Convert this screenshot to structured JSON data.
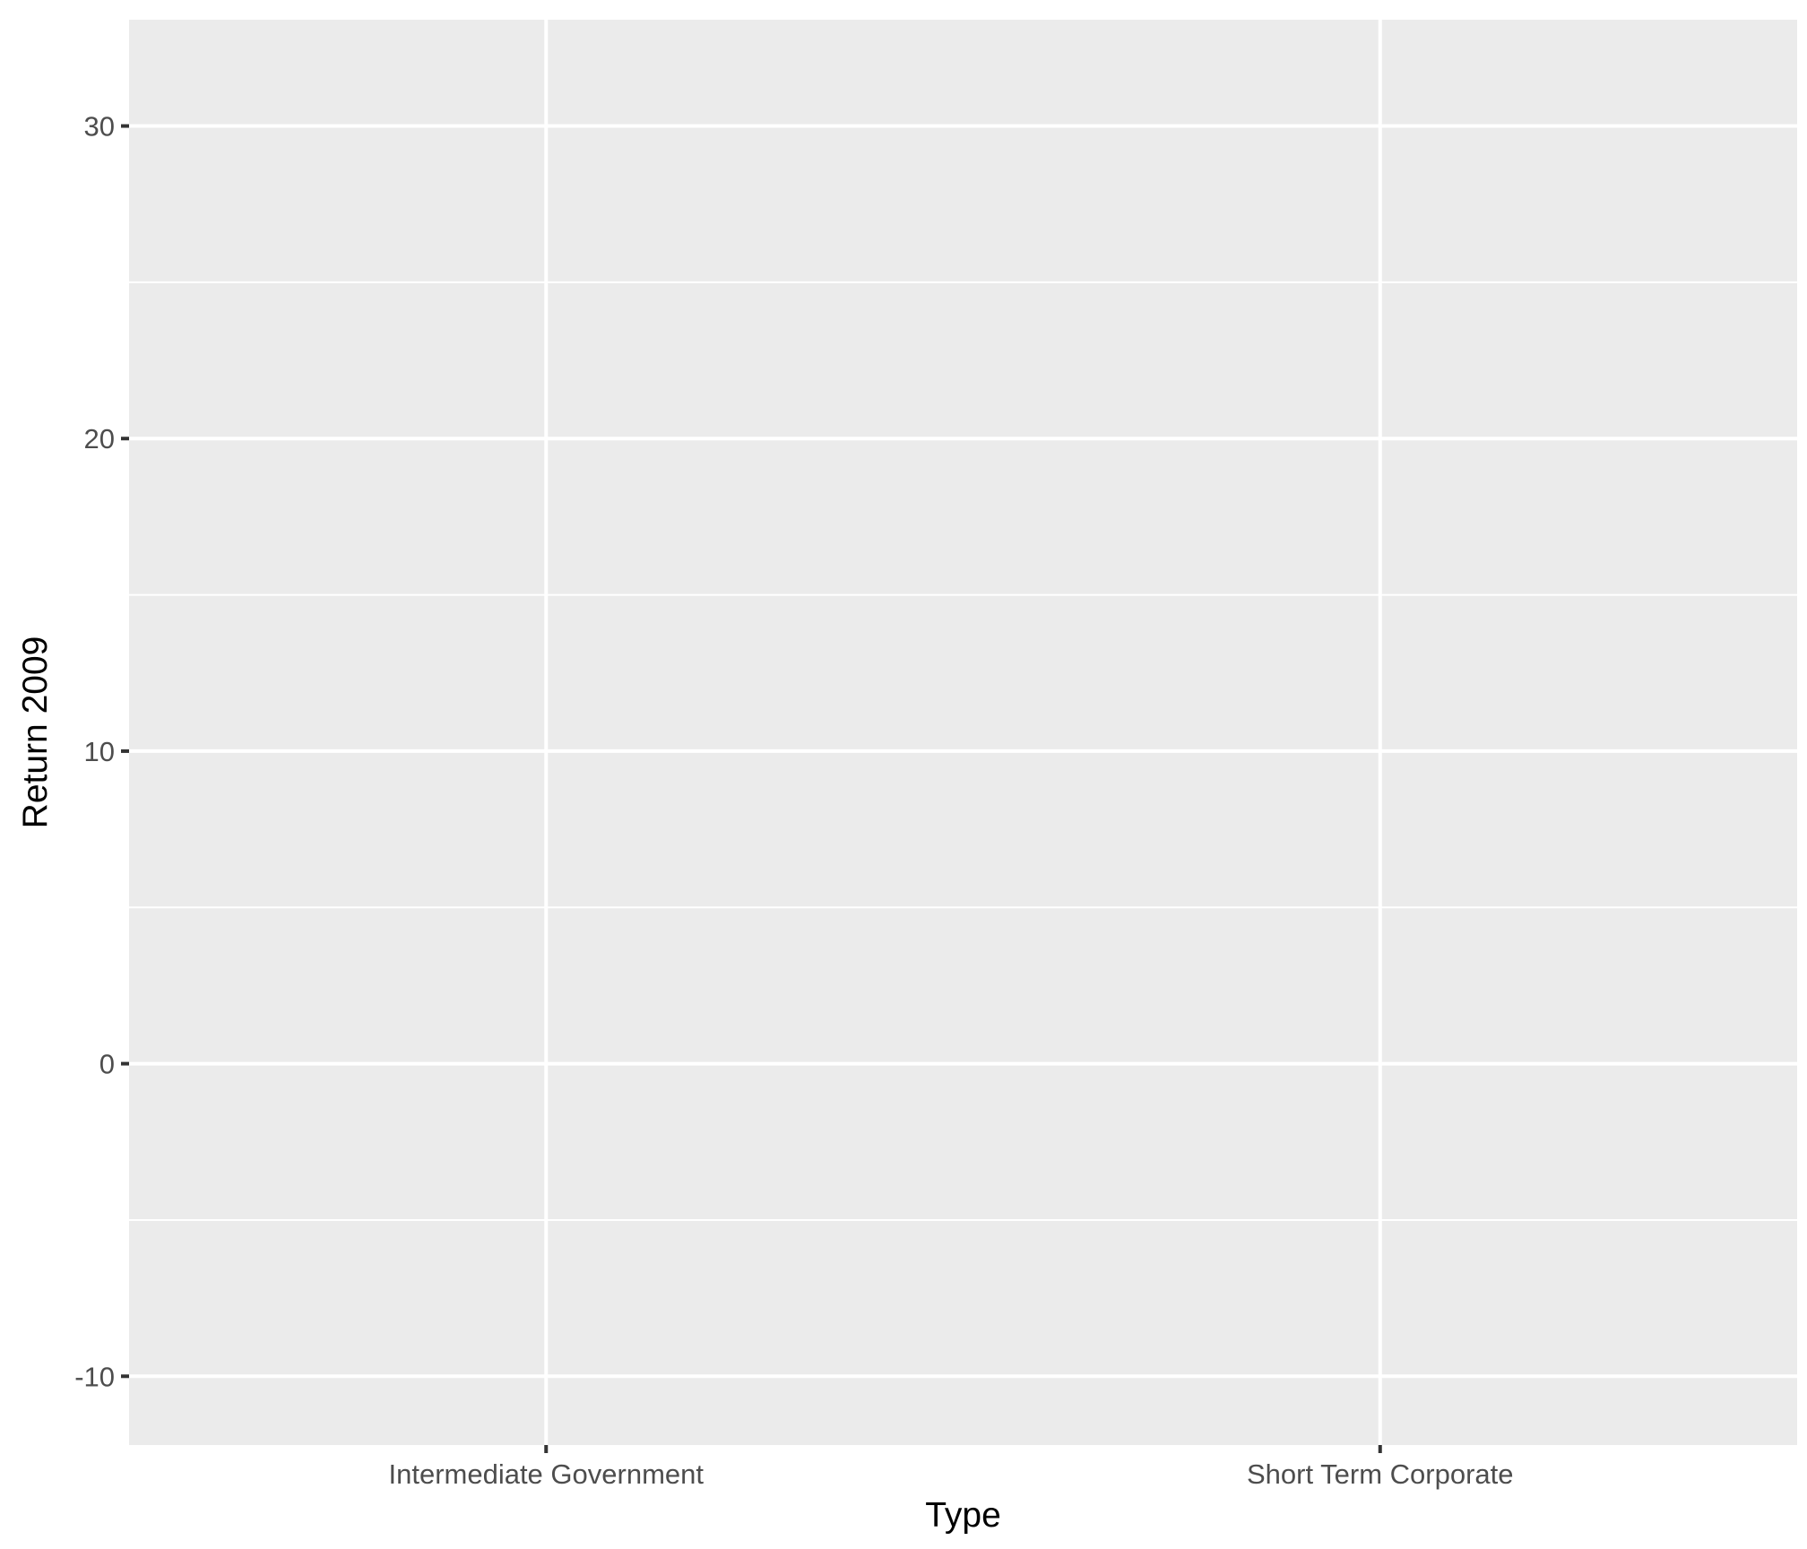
{
  "chart_data": {
    "type": "bar",
    "title": "",
    "xlabel": "Type",
    "ylabel": "Return 2009",
    "categories": [
      "Intermediate Government",
      "Short Term Corporate"
    ],
    "series": [
      {
        "values": [
          null,
          null
        ]
      }
    ],
    "ylim": [
      -12.2,
      33.4
    ],
    "y_ticks": [
      -10,
      0,
      10,
      20,
      30
    ],
    "y_tick_labels": [
      "-10",
      "0",
      "10",
      "20",
      "30"
    ],
    "grid": true,
    "legend": "none",
    "colors": {
      "panel_background": "#ebebeb",
      "grid_major": "#ffffff",
      "grid_minor": "#ffffff",
      "tick_mark": "#333333",
      "tick_label": "#4d4d4d",
      "axis_title": "#000000"
    }
  }
}
